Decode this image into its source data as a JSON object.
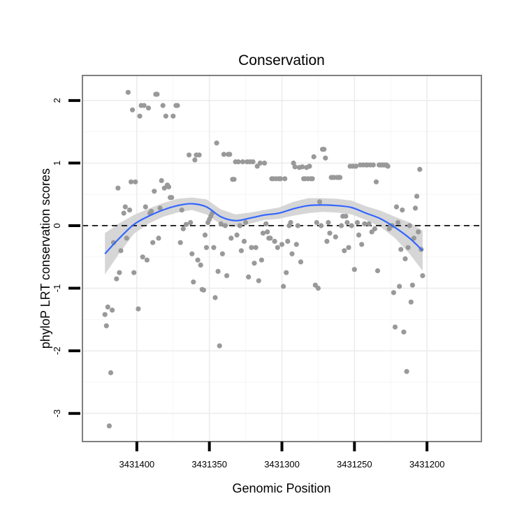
{
  "chart_data": {
    "type": "scatter",
    "title": "Conservation",
    "xlabel": "Genomic Position",
    "ylabel": "phyloP LRT conservation scores",
    "x_reversed": true,
    "xlim": [
      3431162.5,
      3431437.5
    ],
    "ylim": [
      -3.45,
      2.4
    ],
    "x_ticks": [
      3431400,
      3431350,
      3431300,
      3431250,
      3431200
    ],
    "x_tick_labels": [
      "3431400",
      "3431350",
      "3431300",
      "3431250",
      "3431200"
    ],
    "y_ticks": [
      2,
      1,
      0,
      -1,
      -2,
      -3
    ],
    "y_tick_labels": [
      "2",
      "1",
      "0",
      "-1",
      "-2",
      "-3"
    ],
    "reference_line": {
      "y": 0,
      "style": "dashed",
      "color": "#000000"
    },
    "colors": {
      "points": "#999999",
      "smooth": "#3366ff",
      "ribbon": "#d4d4d4",
      "frame": "#808080"
    },
    "points": [
      [
        3431422,
        -1.42
      ],
      [
        3431421,
        -1.6
      ],
      [
        3431420,
        -1.3
      ],
      [
        3431419,
        -3.2
      ],
      [
        3431418,
        -2.35
      ],
      [
        3431417,
        -1.35
      ],
      [
        3431416,
        -0.27
      ],
      [
        3431414,
        -0.85
      ],
      [
        3431413,
        0.6
      ],
      [
        3431412,
        -0.75
      ],
      [
        3431411,
        -0.4
      ],
      [
        3431409,
        0.2
      ],
      [
        3431408,
        0.3
      ],
      [
        3431407,
        -0.2
      ],
      [
        3431406,
        2.13
      ],
      [
        3431405,
        0.25
      ],
      [
        3431404,
        0.7
      ],
      [
        3431403,
        1.85
      ],
      [
        3431402,
        -0.75
      ],
      [
        3431401,
        0.7
      ],
      [
        3431399,
        -1.33
      ],
      [
        3431398,
        1.75
      ],
      [
        3431397,
        1.92
      ],
      [
        3431396,
        -0.5
      ],
      [
        3431395,
        1.92
      ],
      [
        3431394,
        0.3
      ],
      [
        3431393,
        -0.55
      ],
      [
        3431392,
        1.88
      ],
      [
        3431391,
        0.2
      ],
      [
        3431390,
        0.23
      ],
      [
        3431389,
        -0.27
      ],
      [
        3431388,
        0.55
      ],
      [
        3431387,
        2.1
      ],
      [
        3431386,
        2.1
      ],
      [
        3431385,
        -0.2
      ],
      [
        3431384,
        0.28
      ],
      [
        3431383,
        0.72
      ],
      [
        3431382,
        1.92
      ],
      [
        3431381,
        0.6
      ],
      [
        3431380,
        1.75
      ],
      [
        3431379,
        0.65
      ],
      [
        3431378,
        0.62
      ],
      [
        3431377,
        0.45
      ],
      [
        3431376,
        0.45
      ],
      [
        3431375,
        1.75
      ],
      [
        3431373,
        1.92
      ],
      [
        3431372,
        1.92
      ],
      [
        3431370,
        -0.27
      ],
      [
        3431369,
        0.25
      ],
      [
        3431368,
        -0.05
      ],
      [
        3431366,
        0.02
      ],
      [
        3431364,
        1.13
      ],
      [
        3431363,
        0.05
      ],
      [
        3431362,
        -0.45
      ],
      [
        3431361,
        -0.9
      ],
      [
        3431360,
        1.05
      ],
      [
        3431359,
        1.13
      ],
      [
        3431358,
        -0.55
      ],
      [
        3431357,
        1.13
      ],
      [
        3431356,
        -0.63
      ],
      [
        3431355,
        -1.02
      ],
      [
        3431354,
        -1.03
      ],
      [
        3431353,
        -0.15
      ],
      [
        3431352,
        -0.35
      ],
      [
        3431351,
        0.05
      ],
      [
        3431350,
        0.1
      ],
      [
        3431349,
        0.15
      ],
      [
        3431348,
        0.2
      ],
      [
        3431347,
        -0.35
      ],
      [
        3431346,
        -1.15
      ],
      [
        3431345,
        1.32
      ],
      [
        3431344,
        -0.73
      ],
      [
        3431343,
        -1.92
      ],
      [
        3431342,
        0.03
      ],
      [
        3431341,
        -0.45
      ],
      [
        3431340,
        1.14
      ],
      [
        3431339,
        0.0
      ],
      [
        3431338,
        -0.8
      ],
      [
        3431337,
        1.14
      ],
      [
        3431336,
        1.14
      ],
      [
        3431335,
        -0.2
      ],
      [
        3431334,
        0.74
      ],
      [
        3431333,
        0.74
      ],
      [
        3431332,
        1.02
      ],
      [
        3431331,
        -0.15
      ],
      [
        3431330,
        1.02
      ],
      [
        3431329,
        0.0
      ],
      [
        3431328,
        -0.4
      ],
      [
        3431327,
        1.02
      ],
      [
        3431326,
        -0.25
      ],
      [
        3431325,
        0.05
      ],
      [
        3431324,
        1.02
      ],
      [
        3431323,
        -0.82
      ],
      [
        3431322,
        1.02
      ],
      [
        3431321,
        -0.35
      ],
      [
        3431320,
        1.02
      ],
      [
        3431319,
        -0.6
      ],
      [
        3431318,
        -0.35
      ],
      [
        3431317,
        0.95
      ],
      [
        3431316,
        -0.88
      ],
      [
        3431315,
        1.0
      ],
      [
        3431314,
        -0.55
      ],
      [
        3431313,
        -0.12
      ],
      [
        3431312,
        1.0
      ],
      [
        3431311,
        0.03
      ],
      [
        3431310,
        -0.1
      ],
      [
        3431309,
        -0.2
      ],
      [
        3431308,
        -0.2
      ],
      [
        3431307,
        0.75
      ],
      [
        3431306,
        0.75
      ],
      [
        3431305,
        -0.25
      ],
      [
        3431304,
        0.75
      ],
      [
        3431303,
        -0.35
      ],
      [
        3431302,
        0.75
      ],
      [
        3431301,
        0.75
      ],
      [
        3431300,
        -0.3
      ],
      [
        3431299,
        -0.97
      ],
      [
        3431298,
        0.75
      ],
      [
        3431297,
        -0.75
      ],
      [
        3431296,
        -0.25
      ],
      [
        3431295,
        0.0
      ],
      [
        3431294,
        0.05
      ],
      [
        3431293,
        -0.45
      ],
      [
        3431292,
        1.0
      ],
      [
        3431291,
        0.94
      ],
      [
        3431290,
        -0.3
      ],
      [
        3431289,
        0.0
      ],
      [
        3431288,
        0.93
      ],
      [
        3431287,
        -0.58
      ],
      [
        3431286,
        0.94
      ],
      [
        3431285,
        0.75
      ],
      [
        3431284,
        0.75
      ],
      [
        3431283,
        0.93
      ],
      [
        3431282,
        0.75
      ],
      [
        3431281,
        0.95
      ],
      [
        3431280,
        0.75
      ],
      [
        3431279,
        0.75
      ],
      [
        3431278,
        1.1
      ],
      [
        3431277,
        -0.95
      ],
      [
        3431276,
        0.05
      ],
      [
        3431275,
        -1.0
      ],
      [
        3431274,
        0.38
      ],
      [
        3431273,
        0.0
      ],
      [
        3431272,
        1.22
      ],
      [
        3431271,
        1.22
      ],
      [
        3431270,
        1.08
      ],
      [
        3431269,
        -0.25
      ],
      [
        3431268,
        0.05
      ],
      [
        3431267,
        -0.12
      ],
      [
        3431266,
        0.77
      ],
      [
        3431265,
        0.77
      ],
      [
        3431264,
        0.77
      ],
      [
        3431263,
        -0.18
      ],
      [
        3431262,
        0.77
      ],
      [
        3431261,
        0.77
      ],
      [
        3431260,
        0.77
      ],
      [
        3431259,
        0.0
      ],
      [
        3431258,
        0.15
      ],
      [
        3431257,
        -0.4
      ],
      [
        3431256,
        0.15
      ],
      [
        3431255,
        0.05
      ],
      [
        3431254,
        -0.35
      ],
      [
        3431253,
        0.95
      ],
      [
        3431252,
        0.0
      ],
      [
        3431251,
        0.95
      ],
      [
        3431250,
        -0.7
      ],
      [
        3431249,
        0.95
      ],
      [
        3431248,
        0.05
      ],
      [
        3431247,
        -0.15
      ],
      [
        3431246,
        0.97
      ],
      [
        3431245,
        -0.3
      ],
      [
        3431244,
        0.97
      ],
      [
        3431243,
        0.03
      ],
      [
        3431242,
        0.97
      ],
      [
        3431241,
        0.97
      ],
      [
        3431240,
        0.03
      ],
      [
        3431239,
        0.97
      ],
      [
        3431238,
        -0.1
      ],
      [
        3431237,
        0.97
      ],
      [
        3431236,
        -0.05
      ],
      [
        3431235,
        0.7
      ],
      [
        3431234,
        -0.72
      ],
      [
        3431233,
        0.97
      ],
      [
        3431232,
        0.97
      ],
      [
        3431231,
        0.97
      ],
      [
        3431230,
        0.97
      ],
      [
        3431229,
        0.97
      ],
      [
        3431228,
        0.97
      ],
      [
        3431227,
        0.95
      ],
      [
        3431226,
        -0.05
      ],
      [
        3431225,
        0.0
      ],
      [
        3431224,
        0.0
      ],
      [
        3431223,
        -1.07
      ],
      [
        3431222,
        -1.62
      ],
      [
        3431221,
        0.3
      ],
      [
        3431220,
        0.05
      ],
      [
        3431219,
        -0.97
      ],
      [
        3431218,
        -0.38
      ],
      [
        3431217,
        0.25
      ],
      [
        3431216,
        -1.7
      ],
      [
        3431215,
        -0.53
      ],
      [
        3431214,
        -2.33
      ],
      [
        3431213,
        -0.35
      ],
      [
        3431212,
        0.0
      ],
      [
        3431211,
        -1.22
      ],
      [
        3431210,
        -0.95
      ],
      [
        3431209,
        -0.2
      ],
      [
        3431208,
        0.28
      ],
      [
        3431207,
        0.47
      ],
      [
        3431206,
        -0.1
      ],
      [
        3431205,
        0.9
      ],
      [
        3431204,
        -0.38
      ],
      [
        3431203,
        -0.8
      ]
    ],
    "smooth": {
      "x": [
        3431422,
        3431412,
        3431402,
        3431392,
        3431382,
        3431372,
        3431362,
        3431352,
        3431342,
        3431332,
        3431322,
        3431312,
        3431302,
        3431292,
        3431282,
        3431272,
        3431262,
        3431252,
        3431242,
        3431232,
        3431222,
        3431212,
        3431203
      ],
      "y": [
        -0.45,
        -0.2,
        0.02,
        0.15,
        0.25,
        0.32,
        0.35,
        0.3,
        0.14,
        0.08,
        0.12,
        0.17,
        0.2,
        0.27,
        0.32,
        0.33,
        0.32,
        0.29,
        0.2,
        0.11,
        -0.03,
        -0.2,
        -0.4
      ],
      "lower": [
        -0.78,
        -0.44,
        -0.13,
        0.03,
        0.14,
        0.21,
        0.25,
        0.18,
        0.02,
        -0.02,
        0.03,
        0.09,
        0.11,
        0.16,
        0.2,
        0.22,
        0.21,
        0.18,
        0.09,
        -0.02,
        -0.2,
        -0.45,
        -0.72
      ],
      "upper": [
        -0.12,
        0.04,
        0.17,
        0.27,
        0.36,
        0.43,
        0.45,
        0.42,
        0.26,
        0.18,
        0.21,
        0.25,
        0.29,
        0.38,
        0.44,
        0.44,
        0.43,
        0.4,
        0.31,
        0.24,
        0.14,
        0.05,
        -0.08
      ]
    }
  }
}
